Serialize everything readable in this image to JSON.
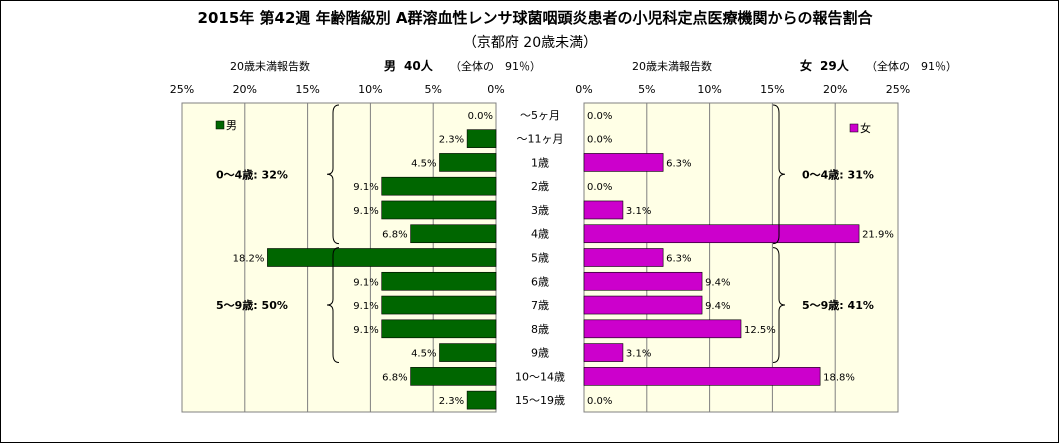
{
  "chart_data": {
    "type": "bar",
    "title": "2015年 第42週 年齢階級別 A群溶血性レンサ球菌咽頭炎患者の小児科定点医療機関からの報告割合",
    "subtitle": "（京都府 20歳未満）",
    "categories": [
      "～5ヶ月",
      "～11ヶ月",
      "1歳",
      "2歳",
      "3歳",
      "4歳",
      "5歳",
      "6歳",
      "7歳",
      "8歳",
      "9歳",
      "10～14歳",
      "15～19歳"
    ],
    "xlim": [
      0,
      25
    ],
    "x_ticks": [
      "25%",
      "20%",
      "15%",
      "10%",
      "5%",
      "0%"
    ],
    "x_ticks_right": [
      "0%",
      "5%",
      "10%",
      "15%",
      "20%",
      "25%"
    ],
    "grid": true,
    "series": [
      {
        "name": "男",
        "header_label": "20歳未満報告数",
        "header_sex": "男",
        "header_count": "40人",
        "header_share": "（全体の　91％）",
        "color": "#006600",
        "values": [
          0.0,
          2.3,
          4.5,
          9.1,
          9.1,
          6.8,
          18.2,
          9.1,
          9.1,
          9.1,
          4.5,
          6.8,
          2.3
        ],
        "labels": [
          "0.0%",
          "2.3%",
          "4.5%",
          "9.1%",
          "9.1%",
          "6.8%",
          "18.2%",
          "9.1%",
          "9.1%",
          "9.1%",
          "4.5%",
          "6.8%",
          "2.3%"
        ],
        "groups": [
          {
            "label": "0～4歳: 32%",
            "from": 0,
            "to": 5
          },
          {
            "label": "5～9歳: 50%",
            "from": 6,
            "to": 10
          }
        ]
      },
      {
        "name": "女",
        "header_label": "20歳未満報告数",
        "header_sex": "女",
        "header_count": "29人",
        "header_share": "（全体の　91％）",
        "color": "#cc00cc",
        "values": [
          0.0,
          0.0,
          6.3,
          0.0,
          3.1,
          21.9,
          6.3,
          9.4,
          9.4,
          12.5,
          3.1,
          18.8,
          0.0
        ],
        "labels": [
          "0.0%",
          "0.0%",
          "6.3%",
          "0.0%",
          "3.1%",
          "21.9%",
          "6.3%",
          "9.4%",
          "9.4%",
          "12.5%",
          "3.1%",
          "18.8%",
          "0.0%"
        ],
        "groups": [
          {
            "label": "0～4歳: 31%",
            "from": 0,
            "to": 5
          },
          {
            "label": "5～9歳: 41%",
            "from": 6,
            "to": 10
          }
        ]
      }
    ]
  }
}
